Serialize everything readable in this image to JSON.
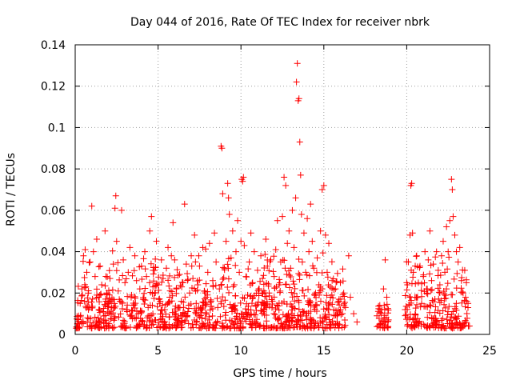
{
  "chart_data": {
    "type": "scatter",
    "title": "Day 044 of 2016, Rate Of TEC Index for receiver nbrk",
    "xlabel": "GPS time / hours",
    "ylabel": "ROTI / TECUs",
    "xlim": [
      0,
      25
    ],
    "ylim": [
      0,
      0.14
    ],
    "xticks": [
      0,
      5,
      10,
      15,
      20,
      25
    ],
    "xtick_labels": [
      "0",
      "5",
      "10",
      "15",
      "20",
      "25"
    ],
    "yticks": [
      0,
      0.02,
      0.04,
      0.06,
      0.08,
      0.1,
      0.12,
      0.14
    ],
    "ytick_labels": [
      "0",
      "0.02",
      "0.04",
      "0.06",
      "0.08",
      "0.1",
      "0.12",
      "0.14"
    ],
    "grid": true,
    "marker": "plus",
    "color": "#ff0000",
    "series": [
      {
        "name": "ROTI",
        "points": [
          [
            0.2,
            0.009
          ],
          [
            0.3,
            0.015
          ],
          [
            0.4,
            0.022
          ],
          [
            0.5,
            0.038
          ],
          [
            0.6,
            0.041
          ],
          [
            0.7,
            0.03
          ],
          [
            0.8,
            0.012
          ],
          [
            0.9,
            0.035
          ],
          [
            1.0,
            0.062
          ],
          [
            1.1,
            0.04
          ],
          [
            1.2,
            0.028
          ],
          [
            1.3,
            0.046
          ],
          [
            1.4,
            0.018
          ],
          [
            1.5,
            0.033
          ],
          [
            1.6,
            0.024
          ],
          [
            1.7,
            0.011
          ],
          [
            1.8,
            0.05
          ],
          [
            1.9,
            0.02
          ],
          [
            2.0,
            0.015
          ],
          [
            2.1,
            0.027
          ],
          [
            2.2,
            0.013
          ],
          [
            2.3,
            0.034
          ],
          [
            2.4,
            0.061
          ],
          [
            2.45,
            0.067
          ],
          [
            2.5,
            0.045
          ],
          [
            2.6,
            0.021
          ],
          [
            2.7,
            0.016
          ],
          [
            2.8,
            0.06
          ],
          [
            2.9,
            0.036
          ],
          [
            3.0,
            0.025
          ],
          [
            3.1,
            0.012
          ],
          [
            3.2,
            0.03
          ],
          [
            3.3,
            0.042
          ],
          [
            3.4,
            0.019
          ],
          [
            3.5,
            0.014
          ],
          [
            3.6,
            0.038
          ],
          [
            3.7,
            0.026
          ],
          [
            3.8,
            0.01
          ],
          [
            3.9,
            0.022
          ],
          [
            4.0,
            0.033
          ],
          [
            4.1,
            0.017
          ],
          [
            4.2,
            0.04
          ],
          [
            4.3,
            0.028
          ],
          [
            4.4,
            0.013
          ],
          [
            4.5,
            0.05
          ],
          [
            4.6,
            0.057
          ],
          [
            4.7,
            0.031
          ],
          [
            4.8,
            0.02
          ],
          [
            4.9,
            0.045
          ],
          [
            5.0,
            0.024
          ],
          [
            5.1,
            0.015
          ],
          [
            5.2,
            0.036
          ],
          [
            5.3,
            0.027
          ],
          [
            5.4,
            0.012
          ],
          [
            5.5,
            0.032
          ],
          [
            5.6,
            0.042
          ],
          [
            5.7,
            0.018
          ],
          [
            5.8,
            0.038
          ],
          [
            5.9,
            0.054
          ],
          [
            6.0,
            0.036
          ],
          [
            6.1,
            0.022
          ],
          [
            6.2,
            0.013
          ],
          [
            6.3,
            0.029
          ],
          [
            6.4,
            0.016
          ],
          [
            6.5,
            0.025
          ],
          [
            6.6,
            0.063
          ],
          [
            6.7,
            0.034
          ],
          [
            6.8,
            0.011
          ],
          [
            6.9,
            0.02
          ],
          [
            7.0,
            0.038
          ],
          [
            7.1,
            0.027
          ],
          [
            7.2,
            0.048
          ],
          [
            7.3,
            0.015
          ],
          [
            7.4,
            0.024
          ],
          [
            7.5,
            0.033
          ],
          [
            7.6,
            0.012
          ],
          [
            7.7,
            0.042
          ],
          [
            7.8,
            0.021
          ],
          [
            7.9,
            0.018
          ],
          [
            8.0,
            0.03
          ],
          [
            8.1,
            0.044
          ],
          [
            8.2,
            0.016
          ],
          [
            8.3,
            0.026
          ],
          [
            8.4,
            0.049
          ],
          [
            8.5,
            0.035
          ],
          [
            8.6,
            0.013
          ],
          [
            8.7,
            0.022
          ],
          [
            8.8,
            0.091
          ],
          [
            8.85,
            0.09
          ],
          [
            8.9,
            0.068
          ],
          [
            9.0,
            0.032
          ],
          [
            9.1,
            0.045
          ],
          [
            9.2,
            0.073
          ],
          [
            9.25,
            0.066
          ],
          [
            9.3,
            0.058
          ],
          [
            9.4,
            0.037
          ],
          [
            9.5,
            0.05
          ],
          [
            9.6,
            0.024
          ],
          [
            9.7,
            0.04
          ],
          [
            9.8,
            0.055
          ],
          [
            9.9,
            0.03
          ],
          [
            10.0,
            0.045
          ],
          [
            10.05,
            0.075
          ],
          [
            10.1,
            0.074
          ],
          [
            10.15,
            0.076
          ],
          [
            10.2,
            0.043
          ],
          [
            10.3,
            0.028
          ],
          [
            10.4,
            0.019
          ],
          [
            10.5,
            0.035
          ],
          [
            10.6,
            0.049
          ],
          [
            10.7,
            0.025
          ],
          [
            10.8,
            0.04
          ],
          [
            10.9,
            0.014
          ],
          [
            11.0,
            0.031
          ],
          [
            11.1,
            0.022
          ],
          [
            11.2,
            0.038
          ],
          [
            11.3,
            0.027
          ],
          [
            11.4,
            0.012
          ],
          [
            11.5,
            0.046
          ],
          [
            11.6,
            0.033
          ],
          [
            11.7,
            0.02
          ],
          [
            11.8,
            0.036
          ],
          [
            11.9,
            0.016
          ],
          [
            12.0,
            0.028
          ],
          [
            12.1,
            0.041
          ],
          [
            12.2,
            0.055
          ],
          [
            12.3,
            0.024
          ],
          [
            12.4,
            0.035
          ],
          [
            12.5,
            0.057
          ],
          [
            12.6,
            0.076
          ],
          [
            12.7,
            0.072
          ],
          [
            12.8,
            0.044
          ],
          [
            12.9,
            0.05
          ],
          [
            13.0,
            0.032
          ],
          [
            13.1,
            0.06
          ],
          [
            13.2,
            0.042
          ],
          [
            13.3,
            0.066
          ],
          [
            13.35,
            0.122
          ],
          [
            13.4,
            0.131
          ],
          [
            13.45,
            0.113
          ],
          [
            13.5,
            0.114
          ],
          [
            13.55,
            0.093
          ],
          [
            13.6,
            0.077
          ],
          [
            13.65,
            0.058
          ],
          [
            13.7,
            0.035
          ],
          [
            13.8,
            0.049
          ],
          [
            13.9,
            0.03
          ],
          [
            14.0,
            0.056
          ],
          [
            14.1,
            0.04
          ],
          [
            14.2,
            0.063
          ],
          [
            14.3,
            0.045
          ],
          [
            14.4,
            0.032
          ],
          [
            14.5,
            0.02
          ],
          [
            14.6,
            0.037
          ],
          [
            14.7,
            0.024
          ],
          [
            14.8,
            0.05
          ],
          [
            14.9,
            0.07
          ],
          [
            15.0,
            0.072
          ],
          [
            15.1,
            0.048
          ],
          [
            15.2,
            0.03
          ],
          [
            15.3,
            0.044
          ],
          [
            15.4,
            0.018
          ],
          [
            15.5,
            0.026
          ],
          [
            15.6,
            0.012
          ],
          [
            15.7,
            0.022
          ],
          [
            15.8,
            0.009
          ],
          [
            15.9,
            0.016
          ],
          [
            16.0,
            0.012
          ],
          [
            16.2,
            0.02
          ],
          [
            16.3,
            0.013
          ],
          [
            16.5,
            0.038
          ],
          [
            16.6,
            0.018
          ],
          [
            16.8,
            0.01
          ],
          [
            17.0,
            0.006
          ],
          [
            18.2,
            0.009
          ],
          [
            18.4,
            0.005
          ],
          [
            18.5,
            0.012
          ],
          [
            18.6,
            0.022
          ],
          [
            18.7,
            0.036
          ],
          [
            18.8,
            0.018
          ],
          [
            18.9,
            0.007
          ],
          [
            19.9,
            0.012
          ],
          [
            20.0,
            0.025
          ],
          [
            20.1,
            0.035
          ],
          [
            20.2,
            0.048
          ],
          [
            20.25,
            0.072
          ],
          [
            20.3,
            0.073
          ],
          [
            20.35,
            0.049
          ],
          [
            20.4,
            0.03
          ],
          [
            20.5,
            0.018
          ],
          [
            20.6,
            0.038
          ],
          [
            20.7,
            0.025
          ],
          [
            20.8,
            0.033
          ],
          [
            20.9,
            0.015
          ],
          [
            21.0,
            0.028
          ],
          [
            21.1,
            0.04
          ],
          [
            21.2,
            0.022
          ],
          [
            21.3,
            0.036
          ],
          [
            21.4,
            0.05
          ],
          [
            21.5,
            0.026
          ],
          [
            21.6,
            0.034
          ],
          [
            21.7,
            0.017
          ],
          [
            21.8,
            0.04
          ],
          [
            21.9,
            0.031
          ],
          [
            22.0,
            0.024
          ],
          [
            22.1,
            0.038
          ],
          [
            22.2,
            0.045
          ],
          [
            22.3,
            0.03
          ],
          [
            22.4,
            0.052
          ],
          [
            22.5,
            0.04
          ],
          [
            22.6,
            0.055
          ],
          [
            22.7,
            0.075
          ],
          [
            22.75,
            0.07
          ],
          [
            22.8,
            0.057
          ],
          [
            22.9,
            0.048
          ],
          [
            23.0,
            0.04
          ],
          [
            23.1,
            0.035
          ],
          [
            23.2,
            0.042
          ],
          [
            23.3,
            0.026
          ],
          [
            23.4,
            0.02
          ],
          [
            23.5,
            0.031
          ],
          [
            23.6,
            0.025
          ],
          [
            23.7,
            0.015
          ]
        ]
      }
    ]
  }
}
